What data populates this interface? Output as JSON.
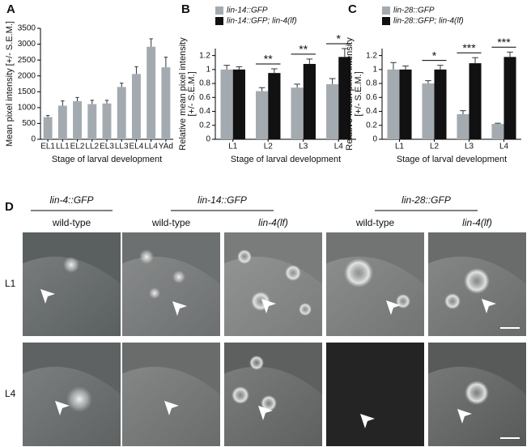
{
  "chart_data": [
    {
      "type": "bar",
      "panel": "A",
      "ylabel": [
        "Mean pixel intensity [+/- S.E.M.]"
      ],
      "xlabel": "Stage of larval development",
      "categories": [
        "EL1",
        "LL1",
        "EL2",
        "LL2",
        "EL3",
        "LL3",
        "EL4",
        "LL4",
        "YAd"
      ],
      "values": [
        700,
        1060,
        1200,
        1110,
        1130,
        1650,
        2060,
        2920,
        2270
      ],
      "errors": [
        50,
        150,
        120,
        120,
        100,
        120,
        230,
        250,
        320
      ],
      "color": "#a3abb1",
      "ylim": [
        0,
        3500
      ],
      "yticks": [
        0,
        500,
        1000,
        1500,
        2000,
        2500,
        3000,
        3500
      ]
    },
    {
      "type": "bar",
      "panel": "B",
      "ylabel": [
        "Relative mean pixel intensity",
        "[+/- S.E.M.]"
      ],
      "xlabel": "Stage of larval development",
      "categories": [
        "L1",
        "L2",
        "L3",
        "L4"
      ],
      "series": [
        {
          "name": "lin-14::GFP",
          "color": "#a3abb1",
          "values": [
            1.0,
            0.69,
            0.74,
            0.79
          ],
          "errors": [
            0.06,
            0.05,
            0.05,
            0.08
          ]
        },
        {
          "name": "lin-14::GFP; lin-4(lf)",
          "color": "#111111",
          "values": [
            1.0,
            0.95,
            1.08,
            1.18
          ],
          "errors": [
            0.04,
            0.06,
            0.07,
            0.12
          ]
        }
      ],
      "annotations": [
        {
          "x": "L2",
          "text": "**"
        },
        {
          "x": "L3",
          "text": "**"
        },
        {
          "x": "L4",
          "text": "*"
        }
      ],
      "legend": "top-left",
      "ylim": [
        0,
        1.3
      ],
      "yticks": [
        0,
        0.2,
        0.4,
        0.6,
        0.8,
        1,
        1.2
      ]
    },
    {
      "type": "bar",
      "panel": "C",
      "ylabel": [
        "Relative mean pixel intensity",
        "[+/- S.E.M.]"
      ],
      "xlabel": "Stage of larval development",
      "categories": [
        "L1",
        "L2",
        "L3",
        "L4"
      ],
      "series": [
        {
          "name": "lin-28::GFP",
          "color": "#a3abb1",
          "values": [
            1.0,
            0.8,
            0.36,
            0.22
          ],
          "errors": [
            0.1,
            0.04,
            0.05,
            0.01
          ]
        },
        {
          "name": "lin-28::GFP; lin-4(lf)",
          "color": "#111111",
          "values": [
            1.0,
            1.0,
            1.09,
            1.18
          ],
          "errors": [
            0.05,
            0.06,
            0.08,
            0.07
          ]
        }
      ],
      "annotations": [
        {
          "x": "L2",
          "text": "*"
        },
        {
          "x": "L3",
          "text": "***"
        },
        {
          "x": "L4",
          "text": "***"
        }
      ],
      "legend": "top-left",
      "ylim": [
        0,
        1.3
      ],
      "yticks": [
        0,
        0.2,
        0.4,
        0.6,
        0.8,
        1,
        1.2
      ]
    }
  ],
  "panel_d": {
    "panel": "D",
    "rows": [
      "L1",
      "L4"
    ],
    "groups": [
      {
        "title": "lin-4::GFP",
        "conditions": [
          "wild-type"
        ]
      },
      {
        "title": "lin-14::GFP",
        "conditions": [
          "wild-type",
          "lin-4(lf)"
        ]
      },
      {
        "title": "lin-28::GFP",
        "conditions": [
          "wild-type",
          "lin-4(lf)"
        ]
      }
    ]
  }
}
